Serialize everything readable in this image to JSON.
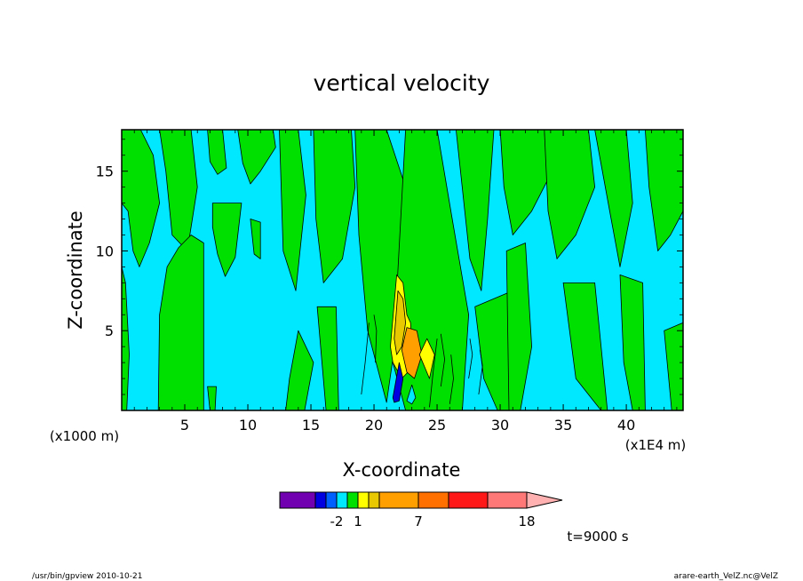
{
  "chart_data": {
    "type": "heatmap",
    "title": "vertical velocity",
    "xlabel": "X-coordinate",
    "ylabel": "Z-coordinate",
    "x_unit": "(x1E4 m)",
    "y_unit": "(x1000 m)",
    "xlim": [
      0,
      44.5
    ],
    "ylim": [
      0,
      17.6
    ],
    "x_ticks": [
      {
        "value": 5,
        "label": "5"
      },
      {
        "value": 10,
        "label": "10"
      },
      {
        "value": 15,
        "label": "15"
      },
      {
        "value": 20,
        "label": "20"
      },
      {
        "value": 25,
        "label": "25"
      },
      {
        "value": 30,
        "label": "30"
      },
      {
        "value": 35,
        "label": "35"
      },
      {
        "value": 40,
        "label": "40"
      }
    ],
    "y_ticks": [
      {
        "value": 5,
        "label": "5"
      },
      {
        "value": 10,
        "label": "10"
      },
      {
        "value": 15,
        "label": "15"
      }
    ],
    "background_color": "#00e8ff",
    "regions": [
      {
        "color": "#00e000",
        "x": [
          0.0,
          1.5,
          2.5,
          3.0,
          2.2,
          1.4,
          0.9,
          0.5,
          0.0
        ],
        "y": [
          17.6,
          17.6,
          16.0,
          13.0,
          10.5,
          9.0,
          10.0,
          12.5,
          13.0
        ]
      },
      {
        "color": "#00e000",
        "x": [
          0.0,
          0.4,
          0.6,
          0.3,
          0.0
        ],
        "y": [
          0.0,
          0.0,
          3.5,
          8.0,
          9.0
        ]
      },
      {
        "color": "#00e000",
        "x": [
          3.0,
          5.5,
          6.0,
          5.2,
          4.0,
          3.5
        ],
        "y": [
          17.6,
          17.6,
          14.0,
          10.0,
          11.0,
          15.0
        ]
      },
      {
        "color": "#00e000",
        "x": [
          2.9,
          6.5,
          6.5,
          5.5,
          4.5,
          3.6,
          3.0
        ],
        "y": [
          0.0,
          0.0,
          10.5,
          11.0,
          10.2,
          9.0,
          6.0
        ]
      },
      {
        "color": "#00e000",
        "x": [
          6.8,
          8.0,
          8.3,
          7.6,
          7.0
        ],
        "y": [
          17.6,
          17.6,
          15.2,
          14.8,
          15.6
        ]
      },
      {
        "color": "#00e000",
        "x": [
          7.2,
          9.5,
          9.0,
          8.2,
          7.6,
          7.2
        ],
        "y": [
          13.0,
          13.0,
          9.6,
          8.4,
          9.8,
          11.5
        ]
      },
      {
        "color": "#00e000",
        "x": [
          9.2,
          12.0,
          12.2,
          11.0,
          10.2,
          9.6
        ],
        "y": [
          17.6,
          17.6,
          16.5,
          15.0,
          14.2,
          15.5
        ]
      },
      {
        "color": "#00e000",
        "x": [
          10.2,
          11.0,
          11.0,
          10.5
        ],
        "y": [
          12.0,
          11.8,
          9.5,
          9.8
        ]
      },
      {
        "color": "#00e000",
        "x": [
          6.8,
          7.5,
          7.4,
          7.0
        ],
        "y": [
          1.5,
          1.5,
          0.0,
          0.0
        ]
      },
      {
        "color": "#00e000",
        "x": [
          12.5,
          14.0,
          14.6,
          13.8,
          12.8
        ],
        "y": [
          17.6,
          17.6,
          13.5,
          7.5,
          10.0
        ]
      },
      {
        "color": "#00e000",
        "x": [
          13.0,
          14.5,
          15.2,
          14.0,
          13.3
        ],
        "y": [
          0.0,
          0.0,
          3.0,
          5.0,
          2.0
        ]
      },
      {
        "color": "#00e000",
        "x": [
          15.2,
          18.2,
          18.5,
          17.5,
          16.0,
          15.4
        ],
        "y": [
          17.6,
          17.6,
          14.0,
          9.5,
          8.0,
          12.0
        ]
      },
      {
        "color": "#00e000",
        "x": [
          15.5,
          17.0,
          17.2,
          16.2
        ],
        "y": [
          6.5,
          6.5,
          0.0,
          0.0
        ]
      },
      {
        "color": "#00e000",
        "x": [
          18.5,
          21.0,
          22.5,
          22.0,
          21.0,
          19.5,
          18.8
        ],
        "y": [
          17.6,
          17.6,
          14.0,
          6.0,
          0.5,
          5.0,
          11.0
        ]
      },
      {
        "color": "#00e000",
        "x": [
          22.5,
          25.0,
          26.2,
          27.5,
          27.0,
          25.5,
          24.0,
          22.5,
          21.5
        ],
        "y": [
          17.6,
          17.6,
          12.0,
          6.0,
          0.0,
          0.0,
          0.0,
          0.0,
          3.0
        ]
      },
      {
        "color": "#00e000",
        "x": [
          26.5,
          29.5,
          29.0,
          28.5,
          27.6
        ],
        "y": [
          17.6,
          17.6,
          12.0,
          7.5,
          9.5
        ]
      },
      {
        "color": "#00e000",
        "x": [
          28.0,
          31.0,
          30.8,
          29.8,
          28.7
        ],
        "y": [
          6.5,
          7.5,
          0.0,
          0.0,
          2.0
        ]
      },
      {
        "color": "#00e000",
        "x": [
          30.0,
          33.5,
          33.8,
          32.5,
          31.0,
          30.3
        ],
        "y": [
          17.6,
          17.6,
          14.5,
          12.5,
          11.0,
          14.0
        ]
      },
      {
        "color": "#00e000",
        "x": [
          30.5,
          32.0,
          32.5,
          31.6,
          30.7
        ],
        "y": [
          10.0,
          10.5,
          4.0,
          0.0,
          0.0
        ]
      },
      {
        "color": "#00e000",
        "x": [
          33.5,
          37.0,
          37.5,
          36.0,
          34.5,
          33.8
        ],
        "y": [
          17.6,
          17.6,
          14.0,
          11.0,
          9.5,
          12.5
        ]
      },
      {
        "color": "#00e000",
        "x": [
          35.0,
          37.5,
          38.5,
          38.0,
          36.0
        ],
        "y": [
          8.0,
          8.0,
          0.0,
          0.0,
          2.0
        ]
      },
      {
        "color": "#00e000",
        "x": [
          37.5,
          40.0,
          40.5,
          39.5,
          38.8
        ],
        "y": [
          17.6,
          17.6,
          13.0,
          9.0,
          12.0
        ]
      },
      {
        "color": "#00e000",
        "x": [
          39.5,
          41.3,
          41.5,
          40.5,
          39.8
        ],
        "y": [
          8.5,
          8.0,
          0.0,
          0.0,
          3.0
        ]
      },
      {
        "color": "#00e000",
        "x": [
          41.5,
          44.5,
          44.5,
          43.5,
          42.5,
          41.8
        ],
        "y": [
          17.6,
          17.6,
          12.5,
          11.0,
          10.0,
          14.0
        ]
      },
      {
        "color": "#00e000",
        "x": [
          43.0,
          44.5,
          44.5,
          43.6
        ],
        "y": [
          5.0,
          5.5,
          0.0,
          0.0
        ]
      },
      {
        "color": "#ffff00",
        "x": [
          21.3,
          21.8,
          22.3,
          22.6,
          22.9,
          23.0,
          22.8,
          22.2,
          21.5
        ],
        "y": [
          4.0,
          8.5,
          8.0,
          6.0,
          5.5,
          4.0,
          2.5,
          2.0,
          3.0
        ]
      },
      {
        "color": "#e8c800",
        "x": [
          21.6,
          21.9,
          22.3,
          22.5,
          22.2,
          21.8
        ],
        "y": [
          4.5,
          7.5,
          7.0,
          5.5,
          4.0,
          3.5
        ]
      },
      {
        "color": "#ffa000",
        "x": [
          22.2,
          22.6,
          23.4,
          23.8,
          23.2,
          22.6
        ],
        "y": [
          3.8,
          5.2,
          5.0,
          3.5,
          2.0,
          2.4
        ]
      },
      {
        "color": "#ffff00",
        "x": [
          23.6,
          24.2,
          24.8,
          24.4
        ],
        "y": [
          3.5,
          4.5,
          3.5,
          2.0
        ]
      },
      {
        "color": "#0000e0",
        "x": [
          21.5,
          22.0,
          22.3,
          22.0,
          21.6
        ],
        "y": [
          0.8,
          3.0,
          2.0,
          0.6,
          0.5
        ]
      },
      {
        "color": "#00e8ff",
        "x": [
          22.6,
          23.0,
          23.3,
          23.0
        ],
        "y": [
          0.6,
          1.6,
          0.8,
          0.4
        ]
      }
    ],
    "contour_lines": [
      {
        "x": [
          19.0,
          19.3,
          19.6
        ],
        "y": [
          1.0,
          3.0,
          5.5
        ]
      },
      {
        "x": [
          20.1,
          20.2,
          20.0
        ],
        "y": [
          3.0,
          5.0,
          6.0
        ]
      },
      {
        "x": [
          24.4,
          24.7,
          25.0
        ],
        "y": [
          0.2,
          2.5,
          4.5
        ]
      },
      {
        "x": [
          25.3,
          25.6,
          25.3
        ],
        "y": [
          1.5,
          3.2,
          4.8
        ]
      },
      {
        "x": [
          26.0,
          26.3,
          26.1
        ],
        "y": [
          0.4,
          2.0,
          3.5
        ]
      },
      {
        "x": [
          27.5,
          27.8,
          27.6
        ],
        "y": [
          2.0,
          3.5,
          4.5
        ]
      },
      {
        "x": [
          28.3,
          28.6,
          28.4
        ],
        "y": [
          1.0,
          2.8,
          3.8
        ]
      }
    ],
    "colorbar": {
      "colors": [
        "#7000b0",
        "#0000e0",
        "#0060ff",
        "#00e8ff",
        "#00e000",
        "#ffff00",
        "#e8c800",
        "#ffa000",
        "#ff7000",
        "#ff1818",
        "#ff7878",
        "#ffb0b0"
      ],
      "widths": [
        40,
        12,
        12,
        12,
        12,
        12,
        12,
        44,
        34,
        44,
        44,
        40
      ],
      "tick_labels": [
        {
          "label": "-2",
          "boundary": 3
        },
        {
          "label": "1",
          "boundary": 5
        },
        {
          "label": "7",
          "boundary": 8
        },
        {
          "label": "18",
          "boundary": 11
        }
      ]
    },
    "time_label": "t=9000 s"
  },
  "footer": {
    "left": "/usr/bin/gpview   2010-10-21",
    "right": "arare-earth_VelZ.nc@VelZ"
  }
}
